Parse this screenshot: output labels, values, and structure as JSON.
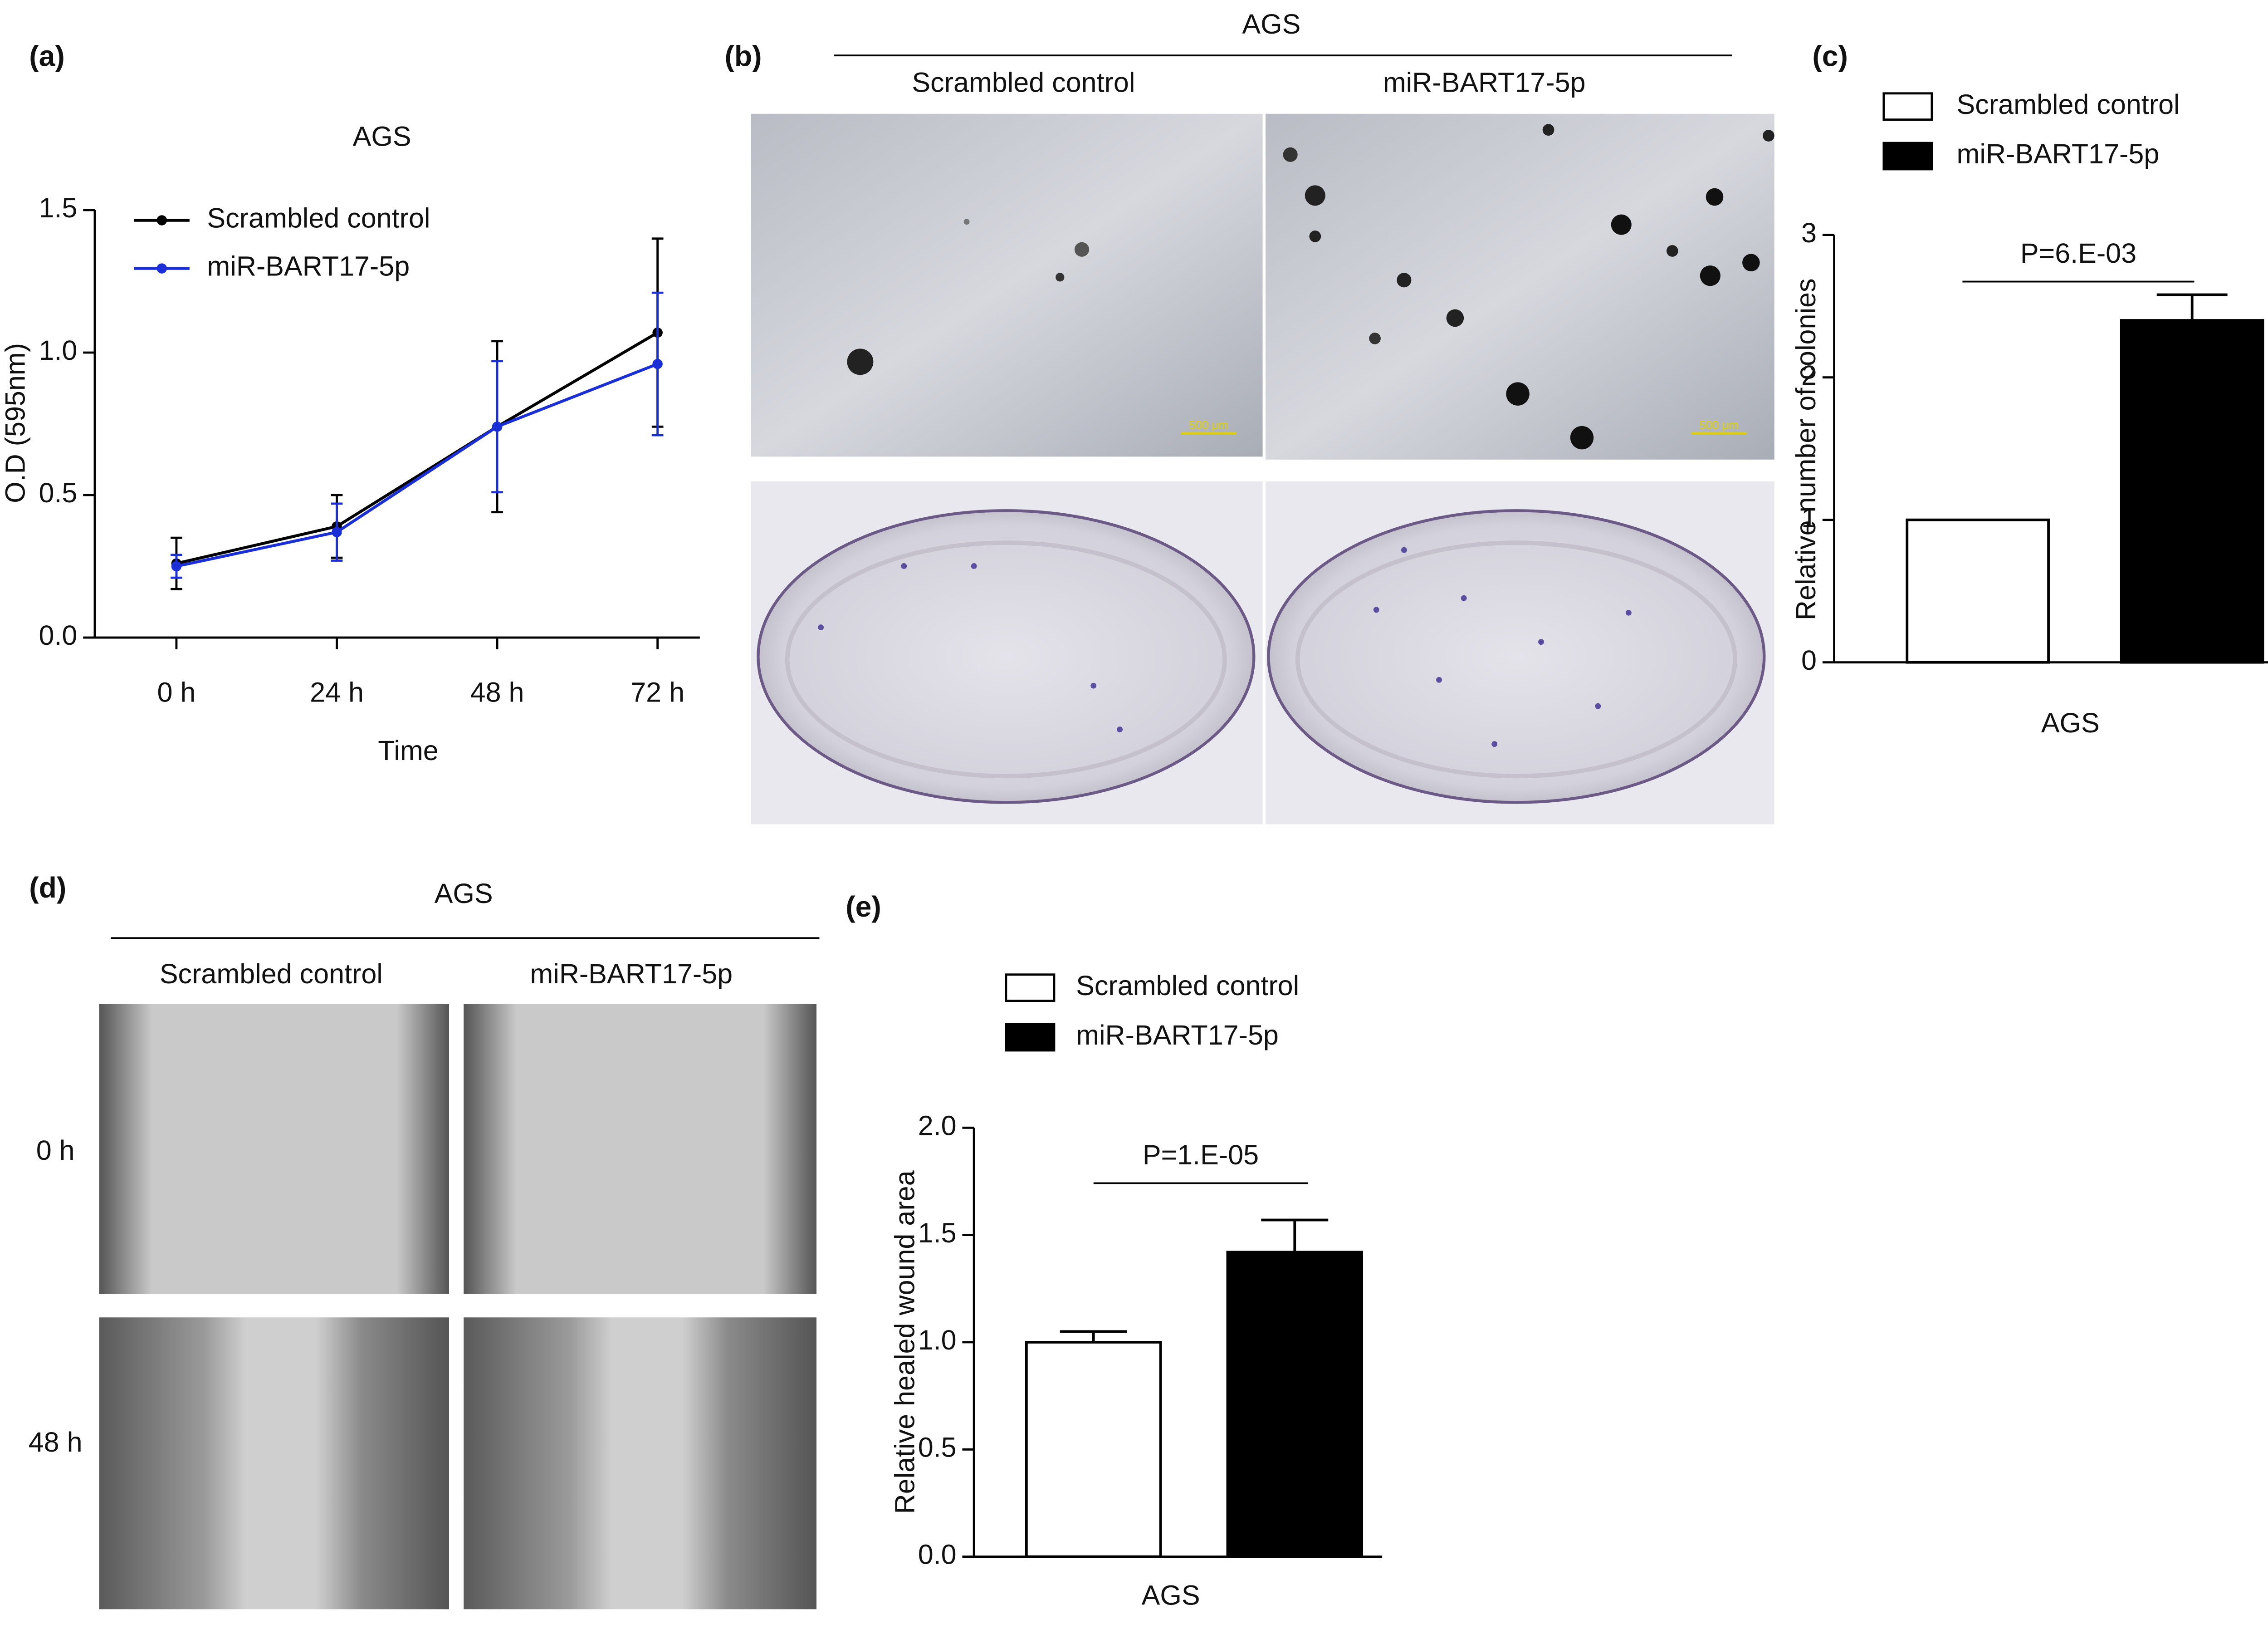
{
  "panels": {
    "b": {
      "label": "(b)",
      "title": "AGS",
      "columns": [
        "Scrambled control",
        "miR-BART17-5p"
      ],
      "scale_label": "500 μm"
    },
    "d": {
      "label": "(d)",
      "title": "AGS",
      "columns": [
        "Scrambled control",
        "miR-BART17-5p"
      ],
      "rows": [
        "0 h",
        "48 h"
      ]
    }
  },
  "chart_data": [
    {
      "type": "line",
      "panel_label": "(a)",
      "title": "AGS",
      "x_label": "Time",
      "y_label": "O.D (595nm)",
      "categories": [
        "0 h",
        "24 h",
        "48 h",
        "72 h"
      ],
      "series": [
        {
          "name": "Scrambled control",
          "color": "#000000",
          "values": [
            0.26,
            0.39,
            0.74,
            1.07
          ],
          "errors": [
            0.09,
            0.11,
            0.3,
            0.33
          ]
        },
        {
          "name": "miR-BART17-5p",
          "color": "#1a2fd6",
          "values": [
            0.25,
            0.37,
            0.74,
            0.96
          ],
          "errors": [
            0.04,
            0.1,
            0.23,
            0.25
          ]
        }
      ],
      "ylim": [
        0,
        1.5
      ],
      "yticks": [
        {
          "value": 0,
          "label": "0.0"
        },
        {
          "value": 0.5,
          "label": "0.5"
        },
        {
          "value": 1,
          "label": "1.0"
        },
        {
          "value": 1.5,
          "label": "1.5"
        }
      ]
    },
    {
      "type": "bar",
      "panel_label": "(c)",
      "y_label": "Relative number of colonies",
      "annotation": "P=6.E-03",
      "categories": [
        "AGS"
      ],
      "series": [
        {
          "name": "Scrambled control",
          "color": "#ffffff",
          "values": [
            1
          ]
        },
        {
          "name": "miR-BART17-5p",
          "color": "#000000",
          "values": [
            2.4
          ],
          "errors": [
            0.18
          ]
        }
      ],
      "ylim": [
        0,
        3
      ],
      "yticks": [
        0,
        1,
        2,
        3
      ]
    },
    {
      "type": "bar",
      "panel_label": "(e)",
      "y_label": "Relative healed wound area",
      "annotation": "P=1.E-05",
      "categories": [
        "AGS"
      ],
      "series": [
        {
          "name": "Scrambled control",
          "color": "#ffffff",
          "values": [
            1
          ],
          "errors": [
            0.05
          ]
        },
        {
          "name": "miR-BART17-5p",
          "color": "#000000",
          "values": [
            1.42
          ],
          "errors": [
            0.15
          ]
        }
      ],
      "ylim": [
        0,
        2
      ],
      "yticks": [
        {
          "value": 0,
          "label": "0.0"
        },
        {
          "value": 0.5,
          "label": "0.5"
        },
        {
          "value": 1,
          "label": "1.0"
        },
        {
          "value": 1.5,
          "label": "1.5"
        },
        {
          "value": 2,
          "label": "2.0"
        }
      ]
    }
  ]
}
